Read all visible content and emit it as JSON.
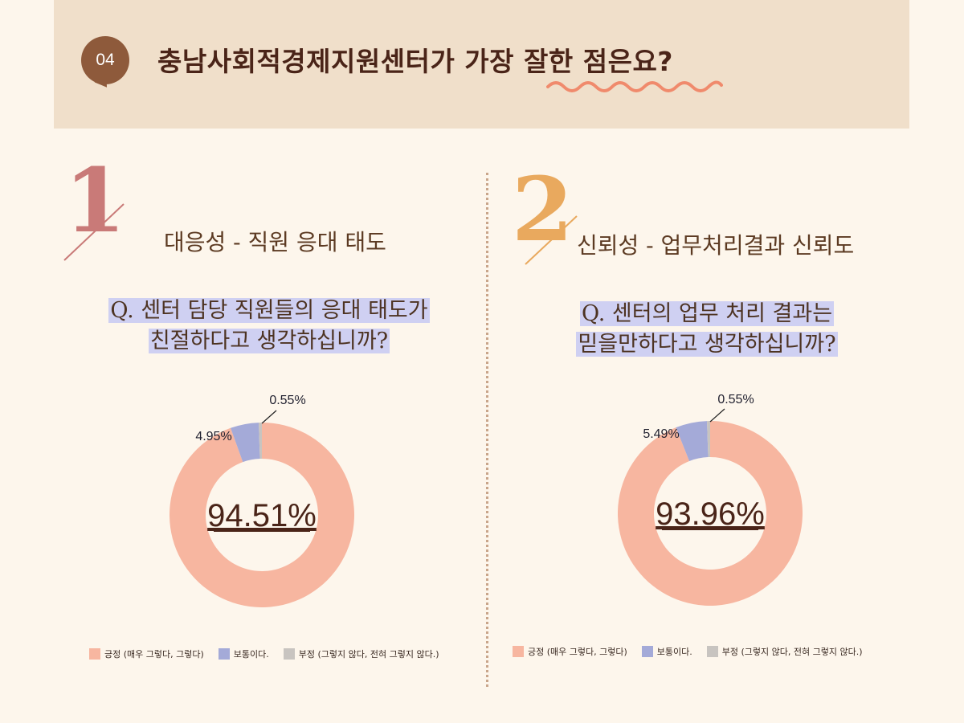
{
  "header": {
    "badge": "04",
    "title": "충남사회적경제지원센터가 가장 잘한 점은요?"
  },
  "sections": [
    {
      "numeral": "1",
      "title": "대응성 - 직원 응대 태도",
      "question_lines": [
        "Q. 센터 담당 직원들의 응대 태도가",
        "친절하다고 생각하십니까?"
      ],
      "center_value": "94.51%",
      "labels": [
        "4.95%",
        "0.55%"
      ]
    },
    {
      "numeral": "2",
      "title": "신뢰성 - 업무처리결과 신뢰도",
      "question_lines": [
        "Q. 센터의 업무 처리 결과는",
        "믿을만하다고 생각하십니까?"
      ],
      "center_value": "93.96%",
      "labels": [
        "5.49%",
        "0.55%"
      ]
    }
  ],
  "colors": {
    "positive": "#f7b6a0",
    "neutral": "#a4aad8",
    "negative": "#c8c4c0",
    "accent_wave": "#f08a6c"
  },
  "chart_data": [
    {
      "type": "pie",
      "title": "Q. 센터 담당 직원들의 응대 태도가 친절하다고 생각하십니까?",
      "categories": [
        "긍정 (매우 그렇다, 그렇다)",
        "보통이다.",
        "부정 (그렇지 않다, 전혀 그렇지 않다.)"
      ],
      "values": [
        94.51,
        4.95,
        0.55
      ],
      "legend": "bottom"
    },
    {
      "type": "pie",
      "title": "Q. 센터의 업무 처리 결과는 믿을만하다고 생각하십니까?",
      "categories": [
        "긍정 (매우 그렇다, 그렇다)",
        "보통이다.",
        "부정 (그렇지 않다, 전혀 그렇지 않다.)"
      ],
      "values": [
        93.96,
        5.49,
        0.55
      ],
      "legend": "bottom"
    }
  ]
}
